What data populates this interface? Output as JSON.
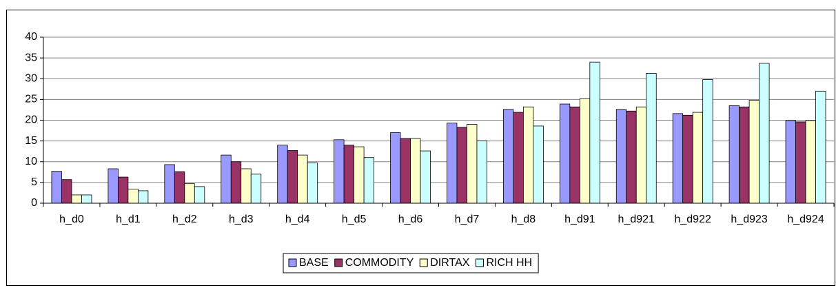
{
  "chart_data": {
    "type": "bar",
    "categories": [
      "h_d0",
      "h_d1",
      "h_d2",
      "h_d3",
      "h_d4",
      "h_d5",
      "h_d6",
      "h_d7",
      "h_d8",
      "h_d91",
      "h_d921",
      "h_d922",
      "h_d923",
      "h_d924"
    ],
    "series": [
      {
        "name": "BASE",
        "color": "#9999ff",
        "values": [
          7.7,
          8.3,
          9.3,
          11.6,
          14.0,
          15.3,
          17.0,
          19.3,
          22.6,
          23.9,
          22.6,
          21.6,
          23.5,
          19.9
        ]
      },
      {
        "name": "COMMODITY",
        "color": "#993366",
        "values": [
          5.7,
          6.3,
          7.6,
          10.0,
          12.7,
          14.0,
          15.6,
          18.3,
          21.9,
          23.2,
          22.2,
          21.2,
          23.2,
          19.6
        ]
      },
      {
        "name": "DIRTAX",
        "color": "#ffffcc",
        "values": [
          2.0,
          3.4,
          4.7,
          8.3,
          11.6,
          13.6,
          15.6,
          19.0,
          23.2,
          25.2,
          23.2,
          21.9,
          24.8,
          19.9
        ]
      },
      {
        "name": "RICH HH",
        "color": "#ccffff",
        "values": [
          2.0,
          3.0,
          4.0,
          7.0,
          9.7,
          11.0,
          12.6,
          15.0,
          18.6,
          34.0,
          31.3,
          29.8,
          33.7,
          27.0
        ]
      }
    ],
    "ylim": [
      0,
      40
    ],
    "yticks": [
      0,
      5,
      10,
      15,
      20,
      25,
      30,
      35,
      40
    ],
    "grid": true,
    "legend": "bottom"
  }
}
